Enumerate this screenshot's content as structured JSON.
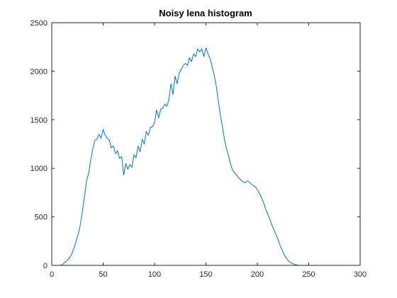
{
  "colors": {
    "background": "#ffffff",
    "axes": "#262626",
    "series": "#0072bd"
  },
  "chart_data": {
    "type": "line",
    "title": "Noisy lena histogram",
    "xlabel": "",
    "ylabel": "",
    "xlim": [
      0,
      300
    ],
    "ylim": [
      0,
      2500
    ],
    "xticks": [
      0,
      50,
      100,
      150,
      200,
      250,
      300
    ],
    "yticks": [
      0,
      500,
      1000,
      1500,
      2000,
      2500
    ],
    "grid": false,
    "legend": "none",
    "series": [
      {
        "x": [
          0,
          2,
          4,
          6,
          8,
          10,
          12,
          14,
          16,
          18,
          20,
          22,
          24,
          26,
          28,
          30,
          32,
          34,
          36,
          38,
          40,
          42,
          44,
          46,
          48,
          50,
          52,
          54,
          56,
          58,
          60,
          62,
          64,
          66,
          68,
          70,
          72,
          74,
          76,
          78,
          80,
          82,
          84,
          86,
          88,
          90,
          92,
          94,
          96,
          98,
          100,
          102,
          104,
          106,
          108,
          110,
          112,
          114,
          116,
          118,
          120,
          122,
          124,
          126,
          128,
          130,
          132,
          134,
          136,
          138,
          140,
          142,
          144,
          146,
          148,
          150,
          152,
          154,
          156,
          158,
          160,
          162,
          164,
          166,
          168,
          170,
          172,
          174,
          176,
          178,
          180,
          182,
          184,
          186,
          188,
          190,
          192,
          194,
          196,
          198,
          200,
          202,
          204,
          206,
          208,
          210,
          212,
          214,
          216,
          218,
          220,
          222,
          224,
          226,
          228,
          230,
          232,
          234,
          236,
          238,
          240,
          242,
          244,
          246,
          248,
          250,
          255
        ],
        "y": [
          0,
          0,
          0,
          0,
          0,
          5,
          25,
          40,
          60,
          90,
          130,
          190,
          260,
          330,
          430,
          570,
          720,
          880,
          950,
          1090,
          1200,
          1290,
          1300,
          1350,
          1310,
          1400,
          1340,
          1310,
          1290,
          1210,
          1230,
          1150,
          1180,
          1100,
          1120,
          930,
          1050,
          990,
          1040,
          1010,
          1140,
          1110,
          1230,
          1170,
          1300,
          1250,
          1380,
          1340,
          1420,
          1430,
          1470,
          1600,
          1520,
          1610,
          1620,
          1660,
          1640,
          1710,
          1870,
          1760,
          1950,
          1870,
          1980,
          2020,
          2060,
          2080,
          2060,
          2140,
          2100,
          2180,
          2150,
          2230,
          2200,
          2230,
          2150,
          2240,
          2180,
          2130,
          2050,
          1960,
          1850,
          1700,
          1550,
          1430,
          1300,
          1200,
          1130,
          1040,
          980,
          950,
          930,
          900,
          880,
          860,
          850,
          870,
          860,
          840,
          820,
          810,
          780,
          740,
          700,
          650,
          580,
          530,
          480,
          420,
          370,
          320,
          270,
          210,
          160,
          110,
          80,
          50,
          30,
          20,
          10,
          5,
          0,
          0,
          0,
          0,
          0,
          0,
          0
        ]
      }
    ]
  }
}
